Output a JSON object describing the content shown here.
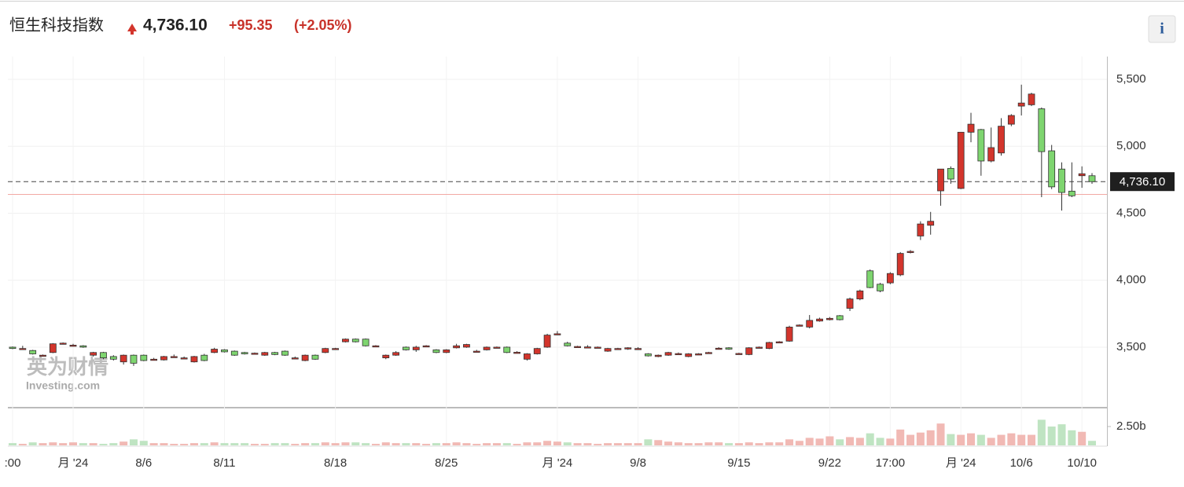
{
  "header": {
    "name": "恒生科技指数",
    "change": "+95.35",
    "change_pct": "(+2.05%)",
    "info": "i"
  },
  "chart_data": {
    "type": "candlestick",
    "categories": [
      ":00",
      null,
      null,
      null,
      null,
      null,
      "月 '24",
      null,
      null,
      null,
      null,
      null,
      null,
      "8/6",
      null,
      null,
      null,
      null,
      null,
      null,
      null,
      "8/11",
      null,
      null,
      null,
      null,
      null,
      null,
      null,
      null,
      null,
      null,
      "8/18",
      null,
      null,
      null,
      null,
      null,
      null,
      null,
      null,
      null,
      null,
      "8/25",
      null,
      null,
      null,
      null,
      null,
      null,
      null,
      null,
      null,
      null,
      "月 '24",
      null,
      null,
      null,
      null,
      null,
      null,
      null,
      "9/8",
      null,
      null,
      null,
      null,
      null,
      null,
      null,
      null,
      null,
      "9/15",
      null,
      null,
      null,
      null,
      null,
      null,
      null,
      null,
      "9/22",
      null,
      null,
      null,
      null,
      null,
      "17:00",
      null,
      null,
      null,
      null,
      null,
      null,
      "月 '24",
      null,
      null,
      null,
      null,
      null,
      "10/6",
      null,
      null,
      null,
      null,
      null,
      "10/10",
      null
    ],
    "ohlc": [
      [
        3500,
        3505,
        3485,
        3490
      ],
      [
        3490,
        3510,
        3480,
        3490
      ],
      [
        3475,
        3480,
        3445,
        3450
      ],
      [
        3440,
        3445,
        3435,
        3440
      ],
      [
        3460,
        3530,
        3455,
        3525
      ],
      [
        3528,
        3535,
        3520,
        3530
      ],
      [
        3515,
        3525,
        3505,
        3515
      ],
      [
        3510,
        3515,
        3495,
        3500
      ],
      [
        3440,
        3465,
        3430,
        3460
      ],
      [
        3460,
        3465,
        3410,
        3420
      ],
      [
        3430,
        3440,
        3400,
        3410
      ],
      [
        3390,
        3445,
        3370,
        3440
      ],
      [
        3440,
        3445,
        3360,
        3380
      ],
      [
        3440,
        3445,
        3395,
        3400
      ],
      [
        3410,
        3420,
        3400,
        3410
      ],
      [
        3405,
        3435,
        3400,
        3430
      ],
      [
        3430,
        3445,
        3425,
        3430
      ],
      [
        3420,
        3430,
        3415,
        3420
      ],
      [
        3390,
        3435,
        3385,
        3430
      ],
      [
        3440,
        3450,
        3395,
        3400
      ],
      [
        3460,
        3495,
        3455,
        3485
      ],
      [
        3480,
        3485,
        3460,
        3465
      ],
      [
        3470,
        3475,
        3435,
        3440
      ],
      [
        3460,
        3465,
        3445,
        3450
      ],
      [
        3455,
        3460,
        3450,
        3455
      ],
      [
        3440,
        3465,
        3435,
        3460
      ],
      [
        3460,
        3465,
        3440,
        3445
      ],
      [
        3470,
        3475,
        3435,
        3440
      ],
      [
        3420,
        3430,
        3410,
        3420
      ],
      [
        3400,
        3445,
        3395,
        3440
      ],
      [
        3440,
        3445,
        3405,
        3410
      ],
      [
        3460,
        3495,
        3455,
        3490
      ],
      [
        3488,
        3495,
        3485,
        3490
      ],
      [
        3540,
        3565,
        3535,
        3560
      ],
      [
        3560,
        3565,
        3535,
        3540
      ],
      [
        3560,
        3565,
        3505,
        3510
      ],
      [
        3510,
        3515,
        3505,
        3510
      ],
      [
        3420,
        3445,
        3410,
        3440
      ],
      [
        3440,
        3470,
        3435,
        3460
      ],
      [
        3500,
        3505,
        3475,
        3480
      ],
      [
        3480,
        3510,
        3465,
        3500
      ],
      [
        3510,
        3515,
        3505,
        3510
      ],
      [
        3480,
        3485,
        3455,
        3460
      ],
      [
        3460,
        3485,
        3455,
        3480
      ],
      [
        3495,
        3525,
        3490,
        3510
      ],
      [
        3500,
        3525,
        3495,
        3520
      ],
      [
        3470,
        3480,
        3465,
        3470
      ],
      [
        3480,
        3505,
        3475,
        3500
      ],
      [
        3500,
        3505,
        3495,
        3500
      ],
      [
        3500,
        3505,
        3455,
        3460
      ],
      [
        3460,
        3470,
        3455,
        3462
      ],
      [
        3410,
        3455,
        3400,
        3450
      ],
      [
        3450,
        3495,
        3445,
        3490
      ],
      [
        3500,
        3600,
        3495,
        3590
      ],
      [
        3600,
        3620,
        3590,
        3600
      ],
      [
        3530,
        3540,
        3505,
        3510
      ],
      [
        3505,
        3510,
        3500,
        3505
      ],
      [
        3500,
        3515,
        3495,
        3502
      ],
      [
        3500,
        3505,
        3495,
        3500
      ],
      [
        3470,
        3495,
        3465,
        3490
      ],
      [
        3490,
        3495,
        3485,
        3490
      ],
      [
        3495,
        3500,
        3480,
        3495
      ],
      [
        3490,
        3500,
        3485,
        3490
      ],
      [
        3450,
        3455,
        3430,
        3435
      ],
      [
        3430,
        3445,
        3425,
        3440
      ],
      [
        3440,
        3465,
        3435,
        3460
      ],
      [
        3450,
        3460,
        3445,
        3452
      ],
      [
        3430,
        3455,
        3425,
        3450
      ],
      [
        3450,
        3455,
        3445,
        3450
      ],
      [
        3460,
        3465,
        3455,
        3460
      ],
      [
        3490,
        3500,
        3485,
        3492
      ],
      [
        3495,
        3500,
        3480,
        3485
      ],
      [
        3453,
        3458,
        3448,
        3453
      ],
      [
        3445,
        3500,
        3440,
        3495
      ],
      [
        3500,
        3505,
        3495,
        3500
      ],
      [
        3490,
        3540,
        3485,
        3535
      ],
      [
        3540,
        3545,
        3535,
        3540
      ],
      [
        3545,
        3660,
        3540,
        3650
      ],
      [
        3665,
        3670,
        3660,
        3665
      ],
      [
        3650,
        3740,
        3640,
        3700
      ],
      [
        3695,
        3720,
        3690,
        3710
      ],
      [
        3705,
        3725,
        3700,
        3715
      ],
      [
        3735,
        3740,
        3700,
        3705
      ],
      [
        3790,
        3870,
        3770,
        3860
      ],
      [
        3860,
        3930,
        3850,
        3920
      ],
      [
        4070,
        4080,
        3940,
        3945
      ],
      [
        3970,
        3980,
        3910,
        3920
      ],
      [
        3980,
        4060,
        3970,
        4050
      ],
      [
        4040,
        4210,
        4030,
        4200
      ],
      [
        4210,
        4225,
        4200,
        4215
      ],
      [
        4330,
        4440,
        4300,
        4420
      ],
      [
        4410,
        4510,
        4340,
        4440
      ],
      [
        4667,
        4830,
        4556,
        4830
      ],
      [
        4835,
        4850,
        4720,
        4755
      ],
      [
        4685,
        5105,
        4680,
        5105
      ],
      [
        5105,
        5250,
        5030,
        5165
      ],
      [
        5125,
        5130,
        4780,
        4890
      ],
      [
        4890,
        5140,
        4880,
        4990
      ],
      [
        4950,
        5210,
        4930,
        5150
      ],
      [
        5165,
        5240,
        5150,
        5230
      ],
      [
        5300,
        5460,
        5230,
        5323
      ],
      [
        5310,
        5400,
        5300,
        5390
      ],
      [
        5280,
        5290,
        4620,
        4960
      ],
      [
        4966,
        5010,
        4680,
        4697
      ],
      [
        4830,
        4880,
        4520,
        4655
      ],
      [
        4665,
        4880,
        4620,
        4630
      ],
      [
        4780,
        4850,
        4690,
        4795
      ],
      [
        4780,
        4800,
        4720,
        4736.1
      ]
    ],
    "up_color": "#d3352c",
    "down_color": "#7ed56f",
    "ylim": [
      3054,
      5670
    ],
    "yticks": [
      {
        "value": 3500,
        "label": "3,500"
      },
      {
        "value": 4000,
        "label": "4,000"
      },
      {
        "value": 4500,
        "label": "4,500"
      },
      {
        "value": 5000,
        "label": "5,000"
      },
      {
        "value": 5500,
        "label": "5,500"
      }
    ],
    "last_price": {
      "value": 4736.1,
      "label": "4,736.10"
    },
    "prev_close": 4640.75,
    "volume": {
      "values": [
        0.3,
        0.2,
        0.4,
        0.3,
        0.4,
        0.3,
        0.4,
        0.3,
        0.3,
        0.2,
        0.3,
        0.5,
        0.8,
        0.6,
        0.3,
        0.3,
        0.2,
        0.2,
        0.3,
        0.3,
        0.4,
        0.3,
        0.3,
        0.3,
        0.2,
        0.2,
        0.3,
        0.3,
        0.2,
        0.3,
        0.3,
        0.4,
        0.3,
        0.4,
        0.4,
        0.3,
        0.2,
        0.4,
        0.3,
        0.3,
        0.3,
        0.2,
        0.3,
        0.3,
        0.4,
        0.3,
        0.2,
        0.3,
        0.3,
        0.3,
        0.2,
        0.4,
        0.4,
        0.6,
        0.5,
        0.4,
        0.3,
        0.3,
        0.2,
        0.3,
        0.3,
        0.3,
        0.3,
        0.8,
        0.7,
        0.5,
        0.4,
        0.3,
        0.3,
        0.4,
        0.4,
        0.3,
        0.3,
        0.4,
        0.3,
        0.4,
        0.4,
        0.8,
        0.6,
        1.0,
        0.9,
        1.2,
        0.8,
        1.1,
        1.0,
        1.6,
        1.0,
        0.9,
        2.1,
        1.4,
        1.7,
        2.0,
        2.9,
        1.5,
        1.4,
        1.6,
        1.4,
        1.0,
        1.4,
        1.6,
        1.4,
        1.4,
        3.4,
        2.5,
        2.8,
        2.0,
        1.8,
        0.6
      ],
      "up_color": "#f1b9b4",
      "down_color": "#bfe4c2",
      "ylim": [
        0,
        4.9
      ],
      "yticks": [
        {
          "value": 2.5,
          "label": "2.50b"
        }
      ]
    },
    "watermark": [
      "英为财情",
      "Investing.com"
    ]
  }
}
